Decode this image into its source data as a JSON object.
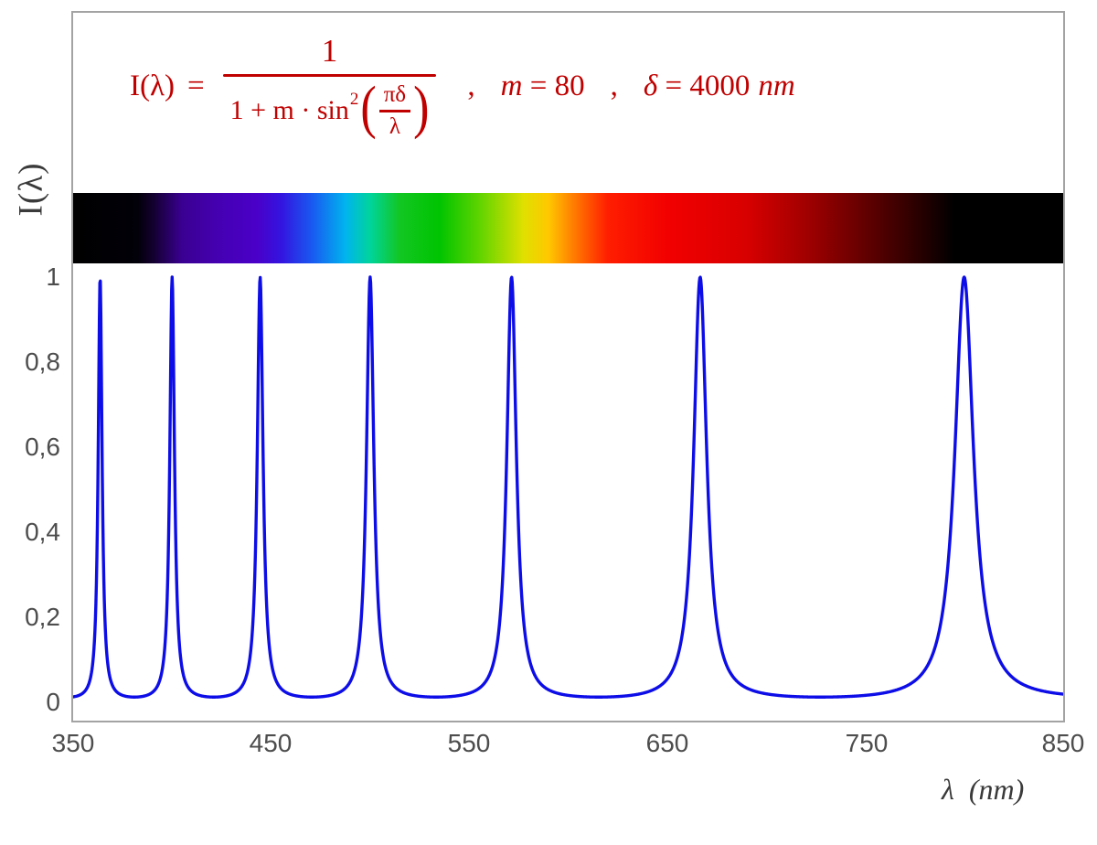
{
  "chart_data": {
    "type": "line",
    "function": "I(lambda) = 1 / (1 + m * sin^2(pi * delta / lambda))",
    "params": {
      "m": 80,
      "delta_nm": 4000
    },
    "xlabel": "λ  (nm)",
    "ylabel": "I(λ)",
    "xlim": [
      350,
      850
    ],
    "ylim": [
      0,
      1
    ],
    "x_ticks": [
      "350",
      "450",
      "550",
      "650",
      "750",
      "850"
    ],
    "y_ticks": [
      "0",
      "0,2",
      "0,4",
      "0,6",
      "0,8",
      "1"
    ],
    "peak_wavelengths_nm": [
      363.6,
      400,
      444.4,
      500,
      571.4,
      666.7,
      800
    ],
    "peak_intensity": 1,
    "baseline_intensity": 0.0123,
    "curve_color": "#0d0de8",
    "grid": "off",
    "legend": "none",
    "spectrum_bar_stops": [
      [
        0,
        "#000000"
      ],
      [
        6.5,
        "#020008"
      ],
      [
        8,
        "#12002c"
      ],
      [
        11,
        "#3a0092"
      ],
      [
        15,
        "#4600b4"
      ],
      [
        18.5,
        "#4a00c8"
      ],
      [
        21,
        "#3414e0"
      ],
      [
        24,
        "#1a56f0"
      ],
      [
        27.5,
        "#00b4ee"
      ],
      [
        30,
        "#00d49c"
      ],
      [
        33,
        "#12c622"
      ],
      [
        37,
        "#00c400"
      ],
      [
        41,
        "#5ed400"
      ],
      [
        45.5,
        "#e0e000"
      ],
      [
        48,
        "#ffc800"
      ],
      [
        51,
        "#ff7000"
      ],
      [
        54,
        "#ff1e00"
      ],
      [
        60,
        "#f20000"
      ],
      [
        68,
        "#d80000"
      ],
      [
        74,
        "#a20000"
      ],
      [
        80,
        "#620000"
      ],
      [
        86,
        "#220000"
      ],
      [
        89,
        "#000000"
      ],
      [
        100,
        "#000000"
      ]
    ]
  },
  "formula": {
    "color": "#c00000",
    "lhs": "I(λ)",
    "eq": "=",
    "numerator": "1",
    "den_prefix": "1 + m · sin",
    "den_sup": "2",
    "paren_open": "(",
    "paren_close": ")",
    "inner_num": "πδ",
    "inner_den": "λ",
    "comma1": ",",
    "comma2": ",",
    "m_var": "m ",
    "m_rhs": "= 80",
    "d_var": "δ ",
    "d_rhs": "= 4000",
    "d_unit": "nm"
  }
}
